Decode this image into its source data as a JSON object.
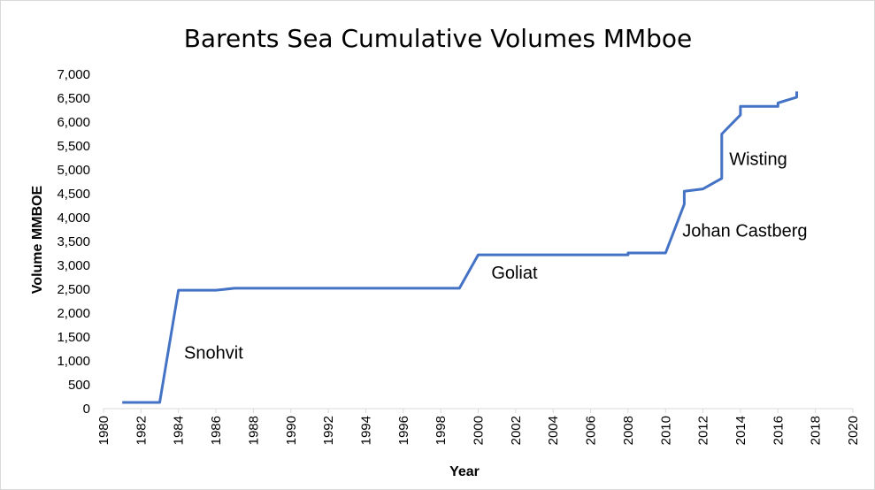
{
  "chart_data": {
    "type": "line",
    "title": "Barents Sea Cumulative Volumes MMboe",
    "xlabel": "Year",
    "ylabel": "Volume MMBOE",
    "xlim": [
      1980,
      2020
    ],
    "ylim": [
      0,
      7000
    ],
    "x_ticks": [
      1980,
      1982,
      1984,
      1986,
      1988,
      1990,
      1992,
      1994,
      1996,
      1998,
      2000,
      2002,
      2004,
      2006,
      2008,
      2010,
      2012,
      2014,
      2016,
      2018,
      2020
    ],
    "y_ticks": [
      0,
      500,
      1000,
      1500,
      2000,
      2500,
      3000,
      3500,
      4000,
      4500,
      5000,
      5500,
      6000,
      6500,
      7000
    ],
    "y_tick_labels": [
      "0",
      "500",
      "1,000",
      "1,500",
      "2,000",
      "2,500",
      "3,000",
      "3,500",
      "4,000",
      "4,500",
      "5,000",
      "5,500",
      "6,000",
      "6,500",
      "7,000"
    ],
    "grid": false,
    "series_color": "#4472c4",
    "series": [
      {
        "x": [
          1981,
          1983,
          1984,
          1986,
          1987,
          1999,
          2000,
          2008,
          2008,
          2010,
          2011,
          2011,
          2012,
          2013,
          2013,
          2014,
          2014,
          2016,
          2016,
          2017,
          2017
        ],
        "y": [
          130,
          130,
          2480,
          2480,
          2520,
          2520,
          3220,
          3220,
          3260,
          3260,
          4280,
          4550,
          4600,
          4820,
          5750,
          6150,
          6330,
          6330,
          6400,
          6520,
          6640
        ]
      }
    ],
    "annotations": [
      {
        "text": "Snohvit",
        "x": 1984.3,
        "y": 1050
      },
      {
        "text": "Goliat",
        "x": 2000.7,
        "y": 2720
      },
      {
        "text": "Johan Castberg",
        "x": 2010.9,
        "y": 3600
      },
      {
        "text": "Wisting",
        "x": 2013.4,
        "y": 5100
      }
    ]
  }
}
